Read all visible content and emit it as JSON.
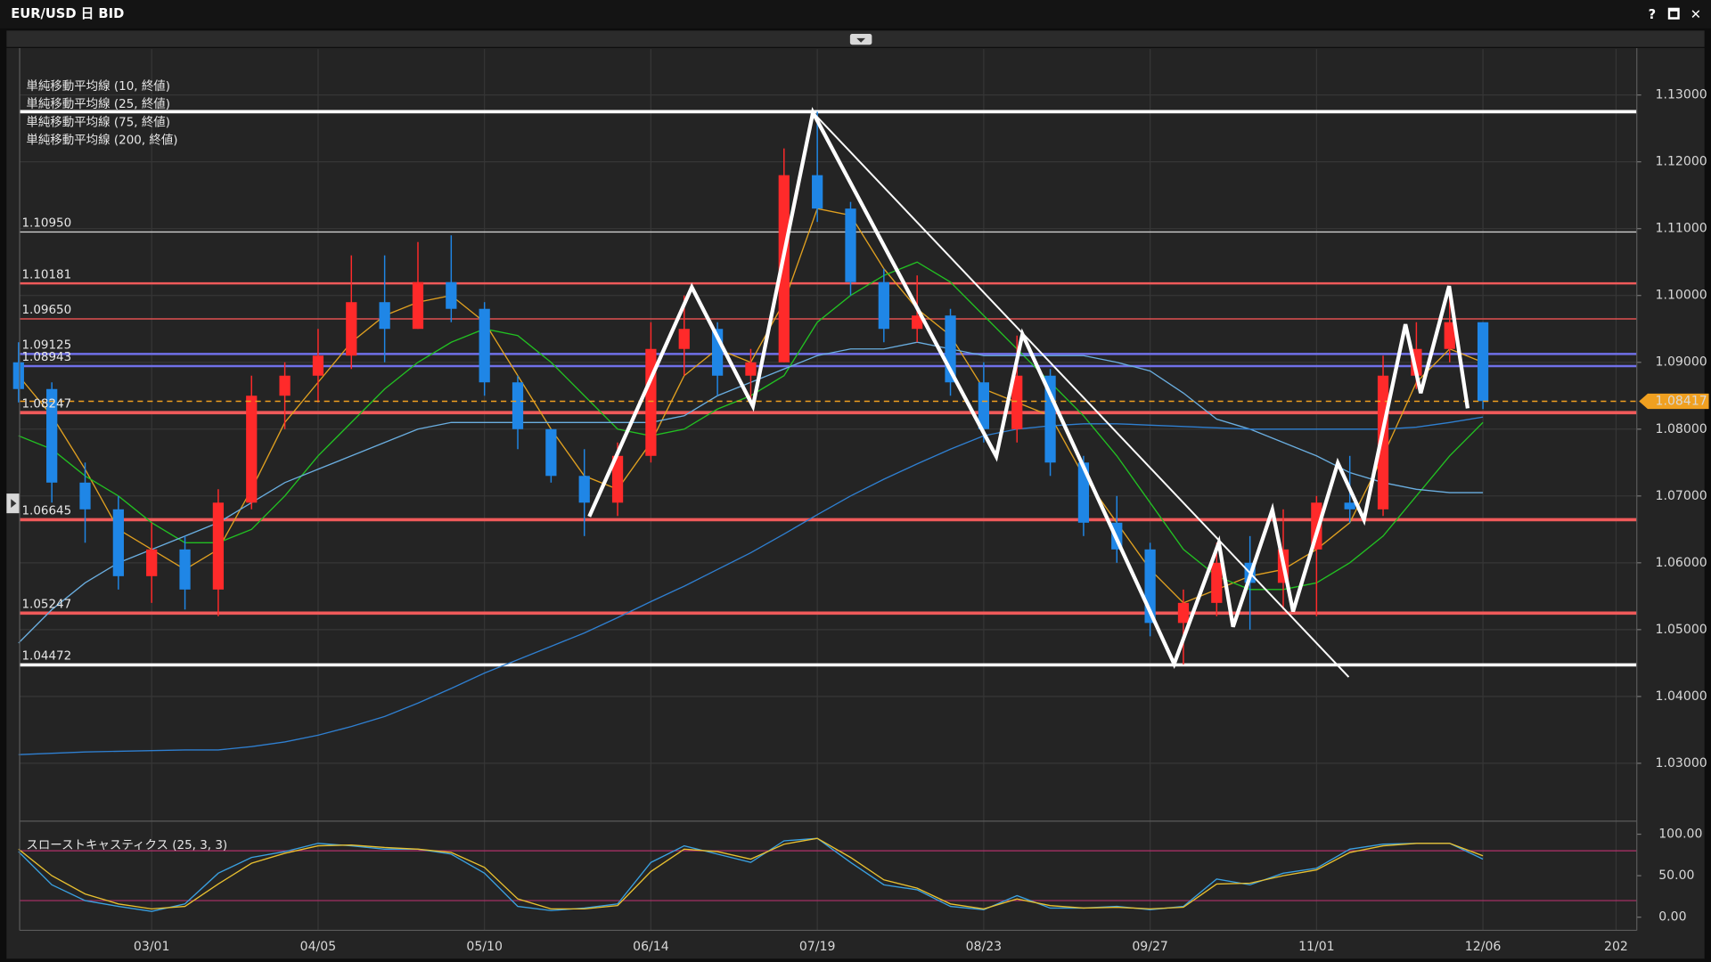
{
  "window": {
    "title": "EUR/USD 日 BID",
    "buttons": [
      "?",
      "🗖",
      "✕"
    ]
  },
  "chart_data": [
    {
      "type": "candlestick",
      "categories": [
        null,
        null,
        null,
        null,
        "03/01",
        null,
        null,
        null,
        null,
        "04/05",
        null,
        null,
        null,
        null,
        "05/10",
        null,
        null,
        null,
        null,
        "06/14",
        null,
        null,
        null,
        null,
        "07/19",
        null,
        null,
        null,
        null,
        "08/23",
        null,
        null,
        null,
        null,
        "09/27",
        null,
        null,
        null,
        null,
        "11/01",
        null,
        null,
        null,
        null,
        "12/06",
        null,
        null,
        null,
        "202"
      ],
      "open": [
        1.09,
        1.086,
        1.072,
        1.068,
        1.058,
        1.062,
        1.056,
        1.069,
        1.085,
        1.088,
        1.091,
        1.099,
        1.095,
        1.102,
        1.098,
        1.087,
        1.08,
        1.073,
        1.069,
        1.076,
        1.092,
        1.095,
        1.088,
        1.09,
        1.118,
        1.113,
        1.102,
        1.095,
        1.097,
        1.087,
        1.08,
        1.088,
        1.075,
        1.066,
        1.062,
        1.051,
        1.054,
        1.06,
        1.057,
        1.062,
        1.069,
        1.068,
        1.088,
        1.092,
        1.096,
        null,
        null,
        null,
        null
      ],
      "high": [
        1.093,
        1.087,
        1.075,
        1.07,
        1.066,
        1.064,
        1.071,
        1.088,
        1.09,
        1.095,
        1.106,
        1.106,
        1.108,
        1.109,
        1.099,
        1.088,
        1.08,
        1.077,
        1.078,
        1.096,
        1.1,
        1.096,
        1.092,
        1.122,
        1.1275,
        1.114,
        1.104,
        1.103,
        1.098,
        1.09,
        1.094,
        1.089,
        1.076,
        1.07,
        1.063,
        1.056,
        1.063,
        1.064,
        1.068,
        1.07,
        1.076,
        1.091,
        1.096,
        1.101,
        1.096,
        null,
        null,
        null,
        null
      ],
      "low": [
        1.084,
        1.069,
        1.063,
        1.056,
        1.054,
        1.053,
        1.052,
        1.068,
        1.08,
        1.084,
        1.089,
        1.09,
        1.095,
        1.096,
        1.085,
        1.077,
        1.072,
        1.064,
        1.067,
        1.075,
        1.088,
        1.085,
        1.084,
        1.09,
        1.111,
        1.1,
        1.093,
        1.093,
        1.085,
        1.078,
        1.078,
        1.073,
        1.064,
        1.06,
        1.049,
        1.0448,
        1.052,
        1.05,
        1.053,
        1.052,
        1.066,
        1.067,
        1.086,
        1.09,
        1.083,
        null,
        null,
        null,
        null
      ],
      "close": [
        1.086,
        1.072,
        1.068,
        1.058,
        1.062,
        1.056,
        1.069,
        1.085,
        1.088,
        1.091,
        1.099,
        1.095,
        1.102,
        1.098,
        1.087,
        1.08,
        1.073,
        1.069,
        1.076,
        1.092,
        1.095,
        1.088,
        1.09,
        1.118,
        1.113,
        1.102,
        1.095,
        1.097,
        1.087,
        1.08,
        1.088,
        1.075,
        1.066,
        1.062,
        1.051,
        1.054,
        1.06,
        1.057,
        1.062,
        1.069,
        1.068,
        1.088,
        1.092,
        1.096,
        1.0842,
        null,
        null,
        null,
        null
      ],
      "up_color": "#ff2a2a",
      "down_color": "#1f86e6",
      "series": [
        {
          "name": "単純移動平均線 (10, 終値)",
          "color": "#e0a020",
          "values": [
            1.088,
            1.082,
            1.074,
            1.065,
            1.062,
            1.059,
            1.062,
            1.071,
            1.081,
            1.087,
            1.093,
            1.097,
            1.099,
            1.1,
            1.096,
            1.088,
            1.08,
            1.073,
            1.071,
            1.078,
            1.088,
            1.092,
            1.09,
            1.099,
            1.113,
            1.112,
            1.104,
            1.098,
            1.094,
            1.086,
            1.084,
            1.082,
            1.073,
            1.066,
            1.059,
            1.054,
            1.056,
            1.058,
            1.059,
            1.062,
            1.066,
            1.076,
            1.087,
            1.092,
            1.09,
            null,
            null,
            null,
            null
          ]
        },
        {
          "name": "単純移動平均線 (25, 終値)",
          "color": "#22c022",
          "values": [
            1.079,
            1.077,
            1.073,
            1.07,
            1.066,
            1.063,
            1.063,
            1.065,
            1.07,
            1.076,
            1.081,
            1.086,
            1.09,
            1.093,
            1.095,
            1.094,
            1.09,
            1.085,
            1.08,
            1.079,
            1.08,
            1.083,
            1.085,
            1.088,
            1.096,
            1.1,
            1.103,
            1.105,
            1.102,
            1.097,
            1.092,
            1.087,
            1.082,
            1.076,
            1.069,
            1.062,
            1.058,
            1.056,
            1.056,
            1.057,
            1.06,
            1.064,
            1.07,
            1.076,
            1.081,
            null,
            null,
            null,
            null
          ]
        },
        {
          "name": "単純移動平均線 (75, 終値)",
          "color": "#6aaee0",
          "values": [
            1.048,
            1.053,
            1.057,
            1.06,
            1.062,
            1.064,
            1.066,
            1.069,
            1.072,
            1.074,
            1.076,
            1.078,
            1.08,
            1.081,
            1.081,
            1.081,
            1.081,
            1.081,
            1.081,
            1.081,
            1.082,
            1.085,
            1.087,
            1.089,
            1.091,
            1.092,
            1.092,
            1.093,
            1.092,
            1.091,
            1.091,
            1.091,
            1.091,
            1.09,
            1.0887,
            1.0854,
            1.0815,
            1.08,
            1.078,
            1.076,
            1.0735,
            1.072,
            1.071,
            1.0705,
            1.0705,
            null,
            null,
            null,
            null
          ]
        },
        {
          "name": "単純移動平均線 (200, 終値)",
          "color": "#2f7fd0",
          "values": [
            1.0313,
            1.0315,
            1.0317,
            1.0318,
            1.0319,
            1.032,
            1.032,
            1.0325,
            1.0332,
            1.0342,
            1.0355,
            1.037,
            1.039,
            1.0412,
            1.0435,
            1.0455,
            1.0475,
            1.0495,
            1.0518,
            1.0542,
            1.0565,
            1.059,
            1.0615,
            1.0643,
            1.0672,
            1.07,
            1.0725,
            1.0748,
            1.077,
            1.079,
            1.08,
            1.0805,
            1.0808,
            1.0808,
            1.0806,
            1.0804,
            1.0802,
            1.08,
            1.08,
            1.08,
            1.08,
            1.08,
            1.0803,
            1.081,
            1.0818,
            null,
            null,
            null,
            null
          ]
        }
      ],
      "ylim": [
        1.02167,
        1.13686
      ],
      "yticks": [
        {
          "value": 1.03,
          "label": "1.03000"
        },
        {
          "value": 1.04,
          "label": "1.04000"
        },
        {
          "value": 1.05,
          "label": "1.05000"
        },
        {
          "value": 1.06,
          "label": "1.06000"
        },
        {
          "value": 1.07,
          "label": "1.07000"
        },
        {
          "value": 1.08,
          "label": "1.08000"
        },
        {
          "value": 1.09,
          "label": "1.09000"
        },
        {
          "value": 1.1,
          "label": "1.10000"
        },
        {
          "value": 1.11,
          "label": "1.11000"
        },
        {
          "value": 1.12,
          "label": "1.12000"
        },
        {
          "value": 1.13,
          "label": "1.13000"
        }
      ],
      "grid": true,
      "levels": [
        {
          "value": 1.1275,
          "color": "#ffffff",
          "width": 3
        },
        {
          "value": 1.1095,
          "label": "1.10950",
          "color": "#d0d0d0",
          "width": 1.2
        },
        {
          "value": 1.10181,
          "label": "1.10181",
          "color": "#f05a5a",
          "width": 2
        },
        {
          "value": 1.0965,
          "label": "1.09650",
          "color": "#e05050",
          "width": 1.2
        },
        {
          "value": 1.09125,
          "label": "1.09125",
          "color": "#7070e8",
          "width": 2
        },
        {
          "value": 1.08943,
          "label": "1.08943",
          "color": "#7070e8",
          "width": 2
        },
        {
          "value": 1.08247,
          "label": "1.08247",
          "color": "#f05a5a",
          "width": 3
        },
        {
          "value": 1.06645,
          "label": "1.06645",
          "color": "#f05a5a",
          "width": 3
        },
        {
          "value": 1.05247,
          "label": "1.05247",
          "color": "#f05a5a",
          "width": 3
        },
        {
          "value": 1.04472,
          "label": "1.04472",
          "color": "#ffffff",
          "width": 3
        }
      ],
      "last_price": {
        "value": 1.08417,
        "label": "1.08417",
        "color": "#f0a020"
      }
    },
    {
      "type": "line",
      "title": "スローストキャスティクス (25, 3, 3)",
      "series": [
        {
          "color": "#3aa0e0",
          "values": [
            79,
            39,
            20,
            13,
            7,
            16,
            53,
            72,
            79,
            89,
            86,
            82,
            82,
            76,
            53,
            13,
            8,
            11,
            16,
            66,
            86,
            76,
            66,
            92,
            95,
            66,
            39,
            33,
            13,
            9,
            26,
            11,
            11,
            13,
            9,
            13,
            46,
            39,
            53,
            59,
            82,
            88,
            89,
            89,
            70,
            null,
            null,
            null,
            null
          ]
        },
        {
          "color": "#e8c030",
          "values": [
            82,
            50,
            28,
            16,
            10,
            13,
            40,
            65,
            77,
            86,
            87,
            84,
            82,
            78,
            60,
            22,
            10,
            10,
            14,
            55,
            82,
            79,
            70,
            88,
            95,
            72,
            45,
            35,
            16,
            10,
            22,
            14,
            11,
            12,
            10,
            12,
            40,
            41,
            50,
            57,
            78,
            86,
            89,
            89,
            74,
            null,
            null,
            null,
            null
          ]
        }
      ],
      "ylim": [
        -13.2,
        111.8
      ],
      "yticks": [
        {
          "value": 0,
          "label": "0.00"
        },
        {
          "value": 50,
          "label": "50.00"
        },
        {
          "value": 100,
          "label": "100.00"
        }
      ],
      "levels": [
        {
          "value": 80,
          "color": "#b0306a"
        },
        {
          "value": 20,
          "color": "#b0306a"
        }
      ]
    }
  ]
}
